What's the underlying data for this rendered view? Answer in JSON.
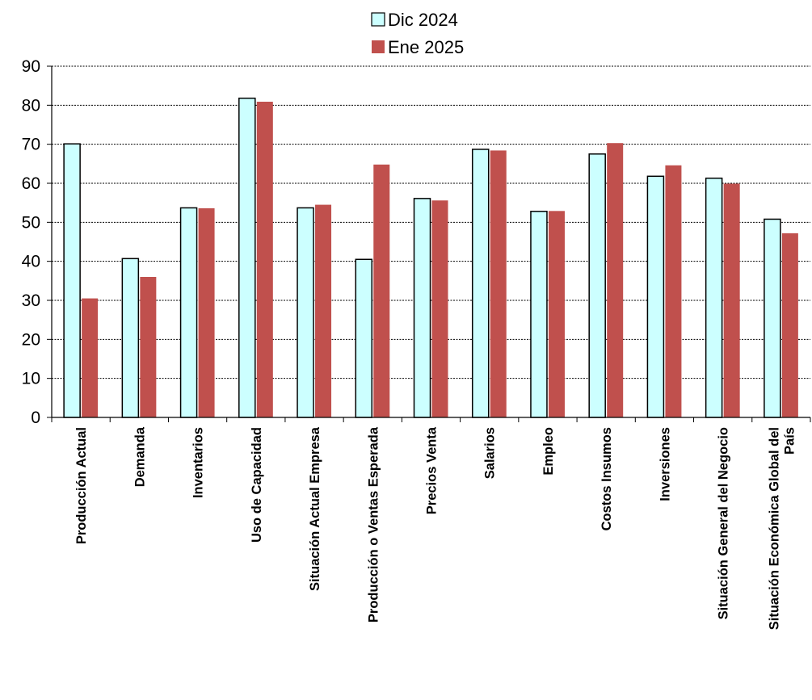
{
  "chart_data": {
    "type": "bar",
    "categories": [
      [
        "Producción Actual"
      ],
      [
        "Demanda"
      ],
      [
        "Inventarios"
      ],
      [
        "Uso de Capacidad"
      ],
      [
        "Situación Actual Empresa"
      ],
      [
        "Producción o Ventas Esperada"
      ],
      [
        "Precios Venta"
      ],
      [
        "Salarios"
      ],
      [
        "Empleo"
      ],
      [
        "Costos Insumos"
      ],
      [
        "Inversiones"
      ],
      [
        "Situación General del Negocio"
      ],
      [
        "Situación Económica Global del",
        "País"
      ]
    ],
    "series": [
      {
        "name": "Dic 2024",
        "color": "#ccffff",
        "values": [
          70.1,
          40.7,
          53.7,
          81.8,
          53.7,
          40.5,
          56.1,
          68.7,
          52.8,
          67.5,
          61.8,
          61.3,
          50.8
        ]
      },
      {
        "name": "Ene 2025",
        "color": "#c0504d",
        "values": [
          30.5,
          36.0,
          53.6,
          80.9,
          54.5,
          64.8,
          55.6,
          68.4,
          52.9,
          70.3,
          64.6,
          59.9,
          47.2
        ]
      }
    ],
    "ylim": [
      0,
      90
    ],
    "yticks": [
      0,
      10,
      20,
      30,
      40,
      50,
      60,
      70,
      80,
      90
    ],
    "grid": "horizontal-dashed",
    "legend_position": "top-center",
    "title": "",
    "xlabel": "",
    "ylabel": ""
  }
}
